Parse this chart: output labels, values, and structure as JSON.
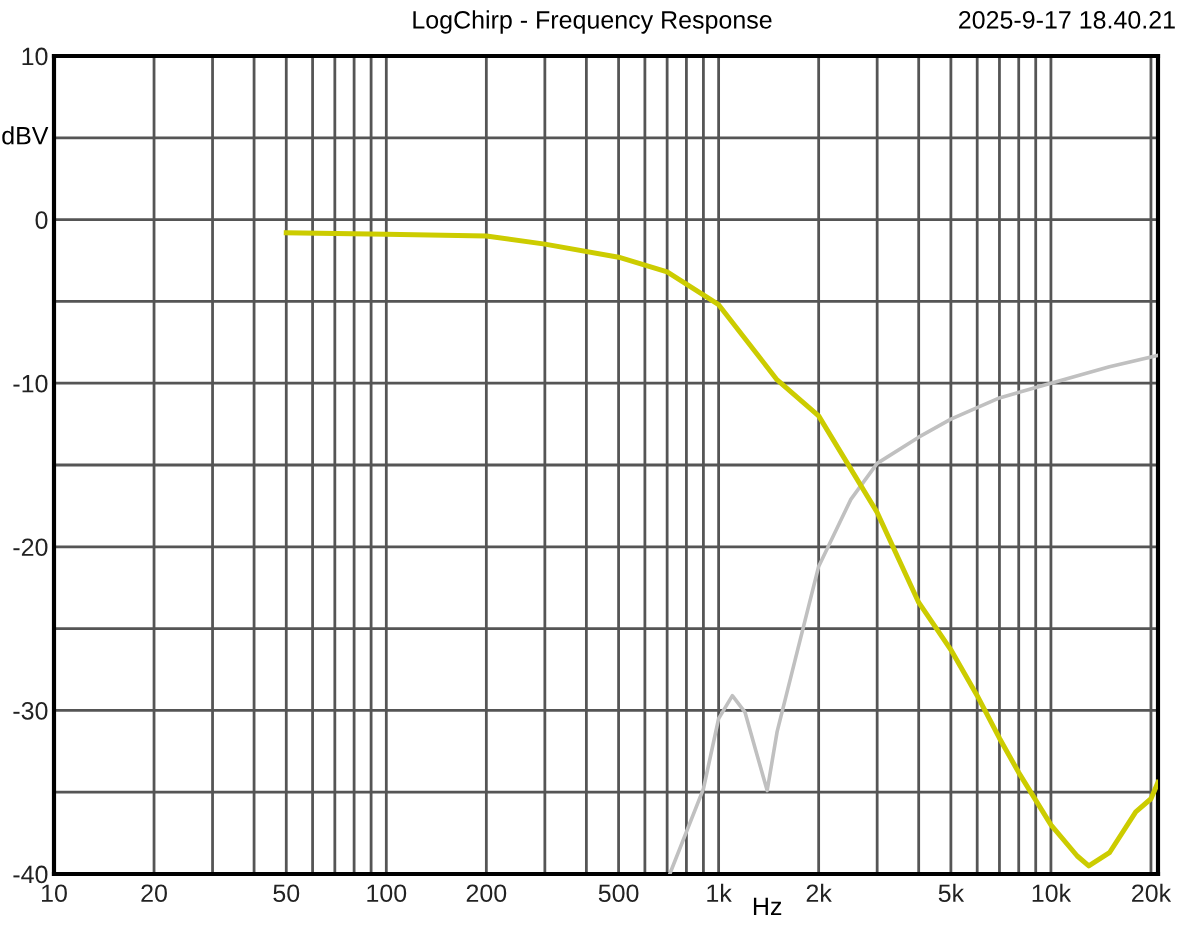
{
  "chart_data": {
    "type": "line",
    "title": "LogChirp - Frequency Response",
    "xlabel": "Hz",
    "ylabel": "dBV",
    "annotations": [
      "2025-9-17 18.40.21"
    ],
    "log": "x",
    "grid": true,
    "legend": false,
    "marker": "none",
    "line_style": "solid",
    "xlim": [
      10,
      21000
    ],
    "ylim": [
      -40,
      10
    ],
    "xticks": [
      10,
      20,
      {
        "value": 30,
        "label": null
      },
      {
        "value": 40,
        "label": null
      },
      50,
      {
        "value": 60,
        "label": null
      },
      {
        "value": 70,
        "label": null
      },
      {
        "value": 80,
        "label": null
      },
      {
        "value": 90,
        "label": null
      },
      100,
      200,
      {
        "value": 300,
        "label": null
      },
      {
        "value": 400,
        "label": null
      },
      500,
      {
        "value": 600,
        "label": null
      },
      {
        "value": 700,
        "label": null
      },
      {
        "value": 800,
        "label": null
      },
      {
        "value": 900,
        "label": null
      },
      {
        "value": 1000,
        "label": "1k"
      },
      {
        "value": 2000,
        "label": "2k"
      },
      {
        "value": 3000,
        "label": null
      },
      {
        "value": 4000,
        "label": null
      },
      {
        "value": 5000,
        "label": "5k"
      },
      {
        "value": 6000,
        "label": null
      },
      {
        "value": 7000,
        "label": null
      },
      {
        "value": 8000,
        "label": null
      },
      {
        "value": 9000,
        "label": null
      },
      {
        "value": 10000,
        "label": "10k"
      },
      {
        "value": 20000,
        "label": "20k"
      }
    ],
    "yticks": [
      -40,
      {
        "value": -35,
        "label": null
      },
      -30,
      {
        "value": -25,
        "label": null
      },
      -20,
      {
        "value": -15,
        "label": null
      },
      -10,
      {
        "value": -5,
        "label": null
      },
      0,
      {
        "value": 5,
        "label": null
      },
      10
    ],
    "series": [
      {
        "color": "#cccc00",
        "x": [
          50,
          100,
          200,
          300,
          500,
          700,
          1000,
          1500,
          2000,
          3000,
          4000,
          5000,
          6000,
          7000,
          8000,
          10000,
          12000,
          13000,
          15000,
          18000,
          20000,
          21000
        ],
        "values": [
          -0.8,
          -0.9,
          -1.0,
          -1.5,
          -2.3,
          -3.2,
          -5.2,
          -9.8,
          -12.0,
          -17.9,
          -23.4,
          -26.3,
          -29.1,
          -31.7,
          -33.8,
          -37.0,
          -38.9,
          -39.5,
          -38.7,
          -36.2,
          -35.4,
          -34.4
        ]
      },
      {
        "color": "#c0c0c0",
        "x": [
          713,
          900,
          1000,
          1100,
          1200,
          1300,
          1400,
          1500,
          1700,
          2000,
          2500,
          3000,
          4000,
          5000,
          7000,
          10000,
          15000,
          21000
        ],
        "values": [
          -40,
          -34.8,
          -30.5,
          -29.1,
          -30.1,
          -32.6,
          -34.9,
          -31.3,
          -26.9,
          -21.2,
          -17.1,
          -14.9,
          -13.3,
          -12.2,
          -10.9,
          -10.0,
          -9.0,
          -8.3
        ]
      }
    ]
  }
}
